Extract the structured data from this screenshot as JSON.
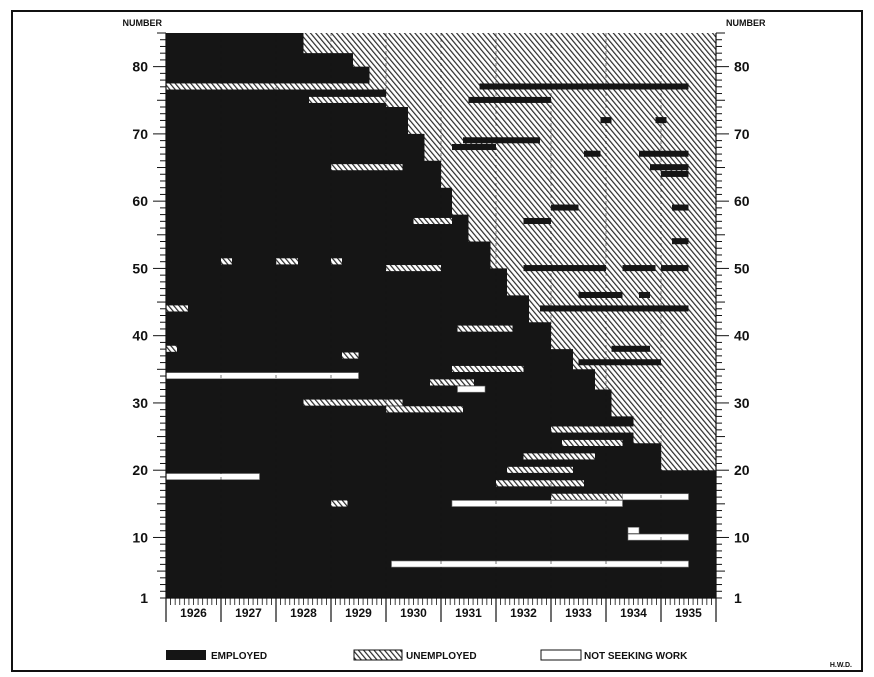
{
  "chart_data": {
    "type": "heatmap",
    "title": "",
    "ylabel_left": "NUMBER",
    "ylabel_right": "NUMBER",
    "y_ticks": [
      1,
      10,
      20,
      30,
      40,
      50,
      60,
      70,
      80
    ],
    "x_ticks": [
      "1926",
      "1927",
      "1928",
      "1929",
      "1930",
      "1931",
      "1932",
      "1933",
      "1934",
      "1935"
    ],
    "xlim": [
      1926.0,
      1936.0
    ],
    "ylim": [
      1,
      85
    ],
    "grid": "vertical lines at year boundaries",
    "categories": [
      "EMPLOYED",
      "UNEMPLOYED",
      "NOT SEEKING WORK"
    ],
    "colors": {
      "EMPLOYED": "#151515",
      "UNEMPLOYED": "#e2e2e2",
      "NOT SEEKING WORK": "#ffffff"
    },
    "unemployment_start_by_number": [
      [
        85,
        1928.5
      ],
      [
        82,
        1929.4
      ],
      [
        80,
        1929.7
      ],
      [
        77,
        1930.0
      ],
      [
        74,
        1930.4
      ],
      [
        70,
        1930.7
      ],
      [
        66,
        1931.0
      ],
      [
        62,
        1931.2
      ],
      [
        58,
        1931.5
      ],
      [
        54,
        1931.9
      ],
      [
        50,
        1932.2
      ],
      [
        46,
        1932.6
      ],
      [
        42,
        1933.0
      ],
      [
        38,
        1933.4
      ],
      [
        35,
        1933.8
      ],
      [
        32,
        1934.1
      ],
      [
        28,
        1934.5
      ],
      [
        24,
        1935.0
      ],
      [
        20,
        1935.5
      ]
    ],
    "employed_streaks": [
      {
        "number": 77,
        "start": 1931.7,
        "end": 1935.5
      },
      {
        "number": 75,
        "start": 1931.5,
        "end": 1933.0
      },
      {
        "number": 72,
        "start": 1933.9,
        "end": 1934.1
      },
      {
        "number": 72,
        "start": 1934.9,
        "end": 1935.1
      },
      {
        "number": 69,
        "start": 1931.4,
        "end": 1932.8
      },
      {
        "number": 68,
        "start": 1931.2,
        "end": 1932.0
      },
      {
        "number": 67,
        "start": 1933.6,
        "end": 1933.9
      },
      {
        "number": 67,
        "start": 1934.6,
        "end": 1935.5
      },
      {
        "number": 65,
        "start": 1934.8,
        "end": 1935.5
      },
      {
        "number": 64,
        "start": 1935.0,
        "end": 1935.5
      },
      {
        "number": 59,
        "start": 1933.0,
        "end": 1933.5
      },
      {
        "number": 59,
        "start": 1935.2,
        "end": 1935.5
      },
      {
        "number": 57,
        "start": 1932.5,
        "end": 1933.0
      },
      {
        "number": 54,
        "start": 1935.2,
        "end": 1935.5
      },
      {
        "number": 50,
        "start": 1932.5,
        "end": 1934.0
      },
      {
        "number": 50,
        "start": 1934.3,
        "end": 1934.9
      },
      {
        "number": 50,
        "start": 1935.0,
        "end": 1935.5
      },
      {
        "number": 46,
        "start": 1933.5,
        "end": 1934.3
      },
      {
        "number": 46,
        "start": 1934.6,
        "end": 1934.8
      },
      {
        "number": 44,
        "start": 1932.8,
        "end": 1935.5
      },
      {
        "number": 38,
        "start": 1934.1,
        "end": 1934.8
      },
      {
        "number": 36,
        "start": 1933.5,
        "end": 1935.0
      }
    ],
    "unemployed_streaks": [
      {
        "number": 77,
        "start": 1926.0,
        "end": 1930.0
      },
      {
        "number": 75,
        "start": 1928.6,
        "end": 1930.0
      },
      {
        "number": 65,
        "start": 1929.0,
        "end": 1930.3
      },
      {
        "number": 57,
        "start": 1930.5,
        "end": 1931.2
      },
      {
        "number": 51,
        "start": 1927.0,
        "end": 1927.2
      },
      {
        "number": 51,
        "start": 1928.0,
        "end": 1928.4
      },
      {
        "number": 51,
        "start": 1929.0,
        "end": 1929.2
      },
      {
        "number": 50,
        "start": 1930.0,
        "end": 1931.0
      },
      {
        "number": 44,
        "start": 1926.0,
        "end": 1926.4
      },
      {
        "number": 41,
        "start": 1931.3,
        "end": 1932.3
      },
      {
        "number": 38,
        "start": 1926.0,
        "end": 1926.2
      },
      {
        "number": 37,
        "start": 1929.2,
        "end": 1929.5
      },
      {
        "number": 35,
        "start": 1931.2,
        "end": 1932.5
      },
      {
        "number": 33,
        "start": 1930.8,
        "end": 1931.6
      },
      {
        "number": 30,
        "start": 1928.5,
        "end": 1930.3
      },
      {
        "number": 29,
        "start": 1930.0,
        "end": 1931.4
      },
      {
        "number": 26,
        "start": 1933.0,
        "end": 1934.5
      },
      {
        "number": 24,
        "start": 1933.2,
        "end": 1934.3
      },
      {
        "number": 22,
        "start": 1932.5,
        "end": 1933.8
      },
      {
        "number": 20,
        "start": 1932.2,
        "end": 1933.4
      },
      {
        "number": 18,
        "start": 1932.0,
        "end": 1933.6
      },
      {
        "number": 16,
        "start": 1933.0,
        "end": 1934.4
      },
      {
        "number": 15,
        "start": 1929.0,
        "end": 1929.3
      }
    ],
    "not_seeking_work_streaks": [
      {
        "number": 34,
        "start": 1926.0,
        "end": 1929.5
      },
      {
        "number": 32,
        "start": 1931.3,
        "end": 1931.8
      },
      {
        "number": 19,
        "start": 1926.0,
        "end": 1927.7
      },
      {
        "number": 16,
        "start": 1934.3,
        "end": 1935.5
      },
      {
        "number": 15,
        "start": 1931.2,
        "end": 1934.3
      },
      {
        "number": 11,
        "start": 1934.4,
        "end": 1934.6
      },
      {
        "number": 10,
        "start": 1934.4,
        "end": 1935.5
      },
      {
        "number": 6,
        "start": 1930.1,
        "end": 1935.5
      }
    ]
  },
  "legend": {
    "employed": "EMPLOYED",
    "unemployed": "UNEMPLOYED",
    "not_seeking": "NOT SEEKING WORK"
  },
  "credit": "H.W.D."
}
